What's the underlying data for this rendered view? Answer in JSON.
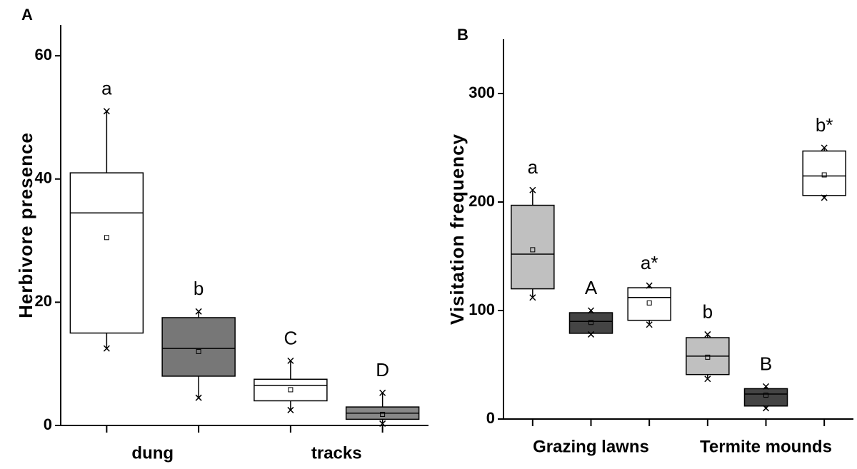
{
  "chart_data": [
    {
      "type": "box",
      "panel_label": "A",
      "y_label": "Herbivore presence",
      "ylim": [
        0,
        65
      ],
      "yticks": [
        0,
        20,
        40,
        60
      ],
      "groups": [
        {
          "name": "dung",
          "boxes": [
            {
              "label": "a",
              "color": "#ffffff",
              "whisker_low": 12.5,
              "q1": 15,
              "median": 34.5,
              "q3": 41,
              "whisker_high": 51,
              "mean": 30.5
            },
            {
              "label": "b",
              "color": "#777777",
              "whisker_low": 4.5,
              "q1": 8,
              "median": 12.5,
              "q3": 17.5,
              "whisker_high": 18.5,
              "mean": 12
            }
          ]
        },
        {
          "name": "tracks",
          "boxes": [
            {
              "label": "C",
              "color": "#ffffff",
              "whisker_low": 2.5,
              "q1": 4,
              "median": 6.5,
              "q3": 7.5,
              "whisker_high": 10.5,
              "mean": 5.8
            },
            {
              "label": "D",
              "color": "#888888",
              "whisker_low": 0.3,
              "q1": 1,
              "median": 2,
              "q3": 3,
              "whisker_high": 5.3,
              "mean": 1.8
            }
          ]
        }
      ]
    },
    {
      "type": "box",
      "panel_label": "B",
      "y_label": "Visitation frequency",
      "ylim": [
        0,
        350
      ],
      "yticks": [
        0,
        100,
        200,
        300
      ],
      "groups": [
        {
          "name": "Grazing lawns",
          "boxes": [
            {
              "label": "a",
              "color": "#c0c0c0",
              "whisker_low": 112,
              "q1": 120,
              "median": 152,
              "q3": 197,
              "whisker_high": 211,
              "mean": 156
            },
            {
              "label": "A",
              "color": "#444444",
              "whisker_low": 78,
              "q1": 79,
              "median": 90,
              "q3": 98,
              "whisker_high": 100,
              "mean": 89
            },
            {
              "label": "a*",
              "color": "#ffffff",
              "whisker_low": 87,
              "q1": 91,
              "median": 112,
              "q3": 121,
              "whisker_high": 123,
              "mean": 107
            }
          ]
        },
        {
          "name": "Termite mounds",
          "boxes": [
            {
              "label": "b",
              "color": "#c0c0c0",
              "whisker_low": 37,
              "q1": 41,
              "median": 58,
              "q3": 75,
              "whisker_high": 78,
              "mean": 57
            },
            {
              "label": "B",
              "color": "#444444",
              "whisker_low": 10,
              "q1": 12,
              "median": 23,
              "q3": 28,
              "whisker_high": 30,
              "mean": 22
            },
            {
              "label": "b*",
              "color": "#ffffff",
              "whisker_low": 204,
              "q1": 206,
              "median": 224,
              "q3": 247,
              "whisker_high": 250,
              "mean": 225
            }
          ]
        }
      ]
    }
  ]
}
